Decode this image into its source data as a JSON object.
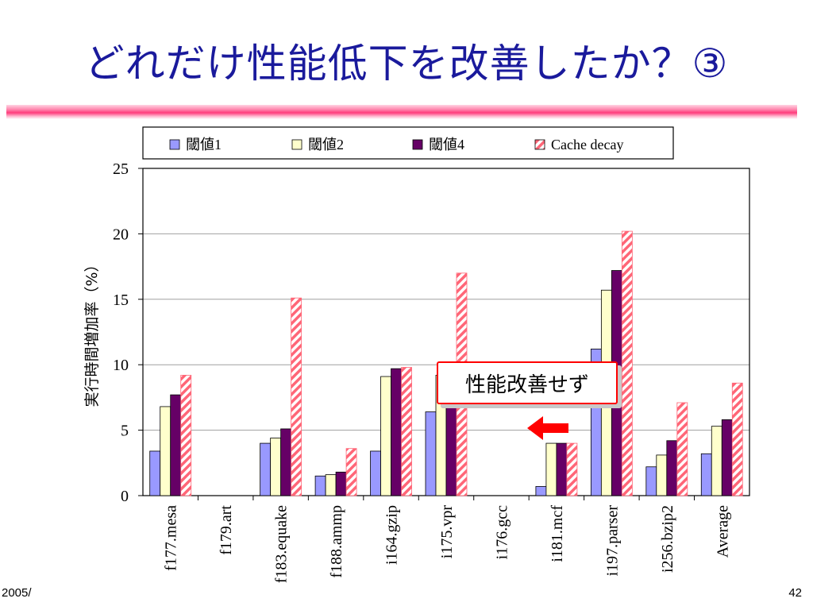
{
  "slide": {
    "title": "どれだけ性能低下を改善したか？③",
    "footer_left": "2005/",
    "page_number": "42",
    "callout": "性能改善せず"
  },
  "colors": {
    "title": "#1a1a9c",
    "rule": "#ff3c7c",
    "series1": "#9999ff",
    "series2": "#ffffcc",
    "series3": "#660066",
    "series4_stripe": "#ff6677",
    "callout_border": "#ff0000",
    "arrow": "#ff0000"
  },
  "chart_data": {
    "type": "bar",
    "ylabel": "実行時間増加率（%）",
    "ylim": [
      0,
      25
    ],
    "yticks": [
      0,
      5,
      10,
      15,
      20,
      25
    ],
    "grid": true,
    "legend_position": "top",
    "categories": [
      "f177.mesa",
      "f179.art",
      "f183.equake",
      "f188.ammp",
      "i164.gzip",
      "i175.vpr",
      "i176.gcc",
      "i181.mcf",
      "i197.parser",
      "i256.bzip2",
      "Average"
    ],
    "series": [
      {
        "name": "閾値1",
        "values": [
          3.4,
          0,
          4.0,
          1.5,
          3.4,
          6.4,
          0,
          0.7,
          11.2,
          2.2,
          3.2
        ]
      },
      {
        "name": "閾値2",
        "values": [
          6.8,
          0,
          4.4,
          1.6,
          9.1,
          9.2,
          0,
          4.0,
          15.7,
          3.1,
          5.3
        ]
      },
      {
        "name": "閾値4",
        "values": [
          7.7,
          0,
          5.1,
          1.8,
          9.7,
          9.3,
          0,
          4.0,
          17.2,
          4.2,
          5.8
        ]
      },
      {
        "name": "Cache decay",
        "values": [
          9.2,
          0,
          15.1,
          3.6,
          9.8,
          17.0,
          0,
          4.0,
          20.2,
          7.1,
          8.6
        ]
      }
    ]
  }
}
